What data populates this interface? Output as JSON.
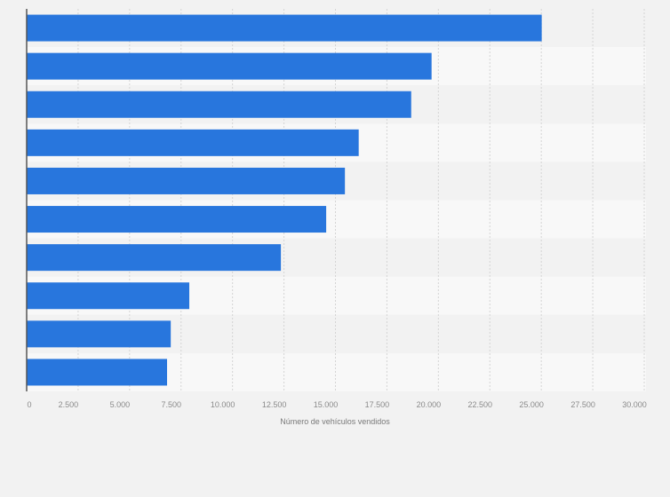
{
  "chart_data": {
    "type": "bar",
    "orientation": "horizontal",
    "title": "",
    "xlabel": "Número de vehículos vendidos",
    "ylabel": "",
    "xlim": [
      0,
      30000
    ],
    "x_ticks": [
      0,
      2500,
      5000,
      7500,
      10000,
      12500,
      15000,
      17500,
      20000,
      22500,
      25000,
      27500,
      30000
    ],
    "x_tick_labels": [
      "0",
      "2.500",
      "5.000",
      "7.500",
      "10.000",
      "12.500",
      "15.000",
      "17.500",
      "20.000",
      "22.500",
      "25.000",
      "27.500",
      "30.000"
    ],
    "categories": [
      "",
      "",
      "",
      "",
      "",
      "",
      "",
      "",
      "",
      ""
    ],
    "values": [
      25020,
      19670,
      18680,
      16130,
      15460,
      14550,
      12350,
      7900,
      7000,
      6820
    ],
    "grid": true,
    "legend": "none",
    "colors": {
      "bar": "#2876dd",
      "stripe_dark": "#f2f2f2",
      "stripe_light": "#f8f8f8",
      "axis": "#555555",
      "grid": "#d4d4d4"
    }
  }
}
